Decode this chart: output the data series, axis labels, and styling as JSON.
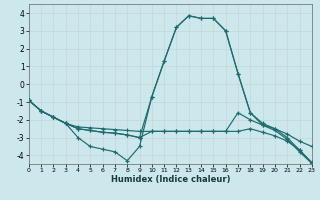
{
  "xlabel": "Humidex (Indice chaleur)",
  "background_color": "#cce8ec",
  "grid_color": "#c8d8da",
  "line_color": "#1e6b6e",
  "xlim": [
    0,
    23
  ],
  "ylim": [
    -4.5,
    4.5
  ],
  "yticks": [
    -4,
    -3,
    -2,
    -1,
    0,
    1,
    2,
    3,
    4
  ],
  "xticks": [
    0,
    1,
    2,
    3,
    4,
    5,
    6,
    7,
    8,
    9,
    10,
    11,
    12,
    13,
    14,
    15,
    16,
    17,
    18,
    19,
    20,
    21,
    22,
    23
  ],
  "lines": [
    {
      "x": [
        0,
        1,
        2,
        3,
        4,
        5,
        6,
        7,
        8,
        9,
        10,
        11,
        12,
        13,
        14,
        15,
        16,
        17,
        18,
        19,
        20,
        21,
        22,
        23
      ],
      "y": [
        -0.9,
        -1.5,
        -1.85,
        -2.2,
        -3.0,
        -3.5,
        -3.65,
        -3.8,
        -4.3,
        -3.5,
        -0.7,
        1.3,
        3.2,
        3.85,
        3.7,
        3.7,
        3.0,
        0.6,
        -1.6,
        -2.2,
        -2.5,
        -3.0,
        -3.7,
        -4.4
      ]
    },
    {
      "x": [
        0,
        1,
        2,
        3,
        4,
        5,
        6,
        7,
        8,
        9,
        10,
        11,
        12,
        13,
        14,
        15,
        16,
        17,
        18,
        19,
        20,
        21,
        22,
        23
      ],
      "y": [
        -0.9,
        -1.5,
        -1.85,
        -2.2,
        -2.5,
        -2.6,
        -2.7,
        -2.75,
        -2.85,
        -3.0,
        -0.7,
        1.3,
        3.2,
        3.85,
        3.7,
        3.7,
        3.0,
        0.6,
        -1.6,
        -2.3,
        -2.6,
        -3.1,
        -3.8,
        -4.45
      ]
    },
    {
      "x": [
        0,
        1,
        2,
        3,
        4,
        5,
        6,
        7,
        8,
        9,
        10,
        11,
        12,
        13,
        14,
        15,
        16,
        17,
        18,
        19,
        20,
        21,
        22,
        23
      ],
      "y": [
        -0.9,
        -1.5,
        -1.85,
        -2.2,
        -2.4,
        -2.45,
        -2.5,
        -2.55,
        -2.6,
        -2.65,
        -2.65,
        -2.65,
        -2.65,
        -2.65,
        -2.65,
        -2.65,
        -2.65,
        -1.6,
        -2.0,
        -2.3,
        -2.5,
        -2.8,
        -3.2,
        -3.5
      ]
    },
    {
      "x": [
        0,
        1,
        2,
        3,
        4,
        5,
        6,
        7,
        8,
        9,
        10,
        11,
        12,
        13,
        14,
        15,
        16,
        17,
        18,
        19,
        20,
        21,
        22,
        23
      ],
      "y": [
        -0.9,
        -1.5,
        -1.85,
        -2.2,
        -2.5,
        -2.6,
        -2.7,
        -2.75,
        -2.85,
        -3.0,
        -2.65,
        -2.65,
        -2.65,
        -2.65,
        -2.65,
        -2.65,
        -2.65,
        -2.65,
        -2.5,
        -2.7,
        -2.9,
        -3.2,
        -3.7,
        -4.45
      ]
    }
  ]
}
